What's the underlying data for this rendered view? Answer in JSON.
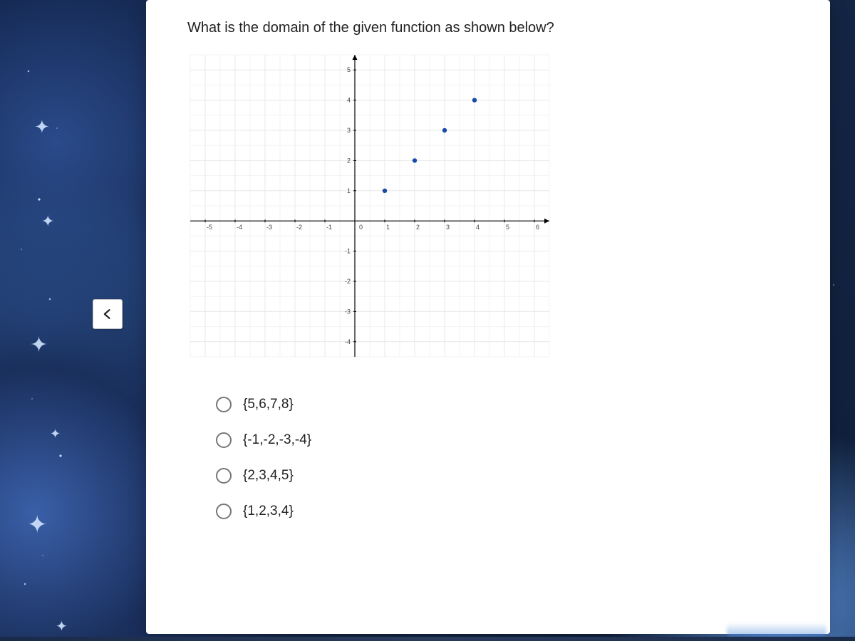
{
  "question": "What is the domain of the given function as shown below?",
  "chart": {
    "type": "scatter",
    "xlim": [
      -5.5,
      6.5
    ],
    "ylim": [
      -4.5,
      5.5
    ],
    "xtick_step": 1,
    "ytick_step": 1,
    "xtick_labels": [
      "-5",
      "-4",
      "-3",
      "-2",
      "-1",
      "0",
      "1",
      "2",
      "3",
      "4",
      "5",
      "6"
    ],
    "ytick_labels": [
      "-4",
      "-3",
      "-2",
      "-1",
      "0",
      "1",
      "2",
      "3",
      "4",
      "5"
    ],
    "grid_color": "#e8e8e8",
    "grid_minor_color": "#f3f3f3",
    "axis_color": "#000000",
    "tick_label_color": "#444444",
    "tick_label_fontsize": 9,
    "background_color": "#ffffff",
    "points": [
      {
        "x": 1,
        "y": 1
      },
      {
        "x": 2,
        "y": 2
      },
      {
        "x": 3,
        "y": 3
      },
      {
        "x": 4,
        "y": 4
      }
    ],
    "marker_color": "#1a4aa8",
    "marker_radius": 3.2,
    "axis_stroke_width": 1.2,
    "grid_stroke_width": 1
  },
  "options": [
    {
      "label": "{5,6,7,8}"
    },
    {
      "label": "{-1,-2,-3,-4}"
    },
    {
      "label": "{2,3,4,5}"
    },
    {
      "label": "{1,2,3,4}"
    }
  ],
  "nav": {
    "prev_icon": "prev-arrow"
  }
}
